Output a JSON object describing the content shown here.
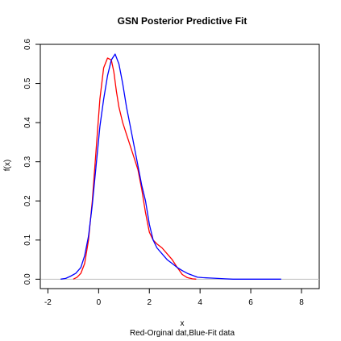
{
  "chart_data": {
    "type": "line",
    "title": "GSN Posterior Predictive Fit",
    "xlabel": "x",
    "xlabel_note": "Red-Orginal dat,Blue-Fit data",
    "ylabel": "f(x)",
    "xlim": [
      -2.3,
      8.7
    ],
    "ylim": [
      -0.024,
      0.6
    ],
    "x_ticks": [
      -2,
      0,
      2,
      4,
      6,
      8
    ],
    "x_tick_labels": [
      "-2",
      "0",
      "2",
      "4",
      "6",
      "8"
    ],
    "y_ticks": [
      0.0,
      0.1,
      0.2,
      0.3,
      0.4,
      0.5,
      0.6
    ],
    "y_tick_labels": [
      "0.0",
      "0.1",
      "0.2",
      "0.3",
      "0.4",
      "0.5",
      "0.6"
    ],
    "baseline_y": 0,
    "grid": false,
    "legend": "none",
    "colors": {
      "red": "#ff0000",
      "blue": "#0000ff",
      "baseline": "#bebebe"
    },
    "series": [
      {
        "color": "#ff0000",
        "x": [
          -1.0,
          -0.85,
          -0.7,
          -0.55,
          -0.4,
          -0.25,
          -0.1,
          0.05,
          0.2,
          0.35,
          0.5,
          0.6,
          0.7,
          0.8,
          0.95,
          1.1,
          1.25,
          1.4,
          1.55,
          1.7,
          1.85,
          2.0,
          2.15,
          2.3,
          2.5,
          2.7,
          2.9,
          3.1,
          3.3,
          3.5,
          3.7,
          3.85
        ],
        "y": [
          0.0,
          0.005,
          0.015,
          0.04,
          0.1,
          0.2,
          0.33,
          0.46,
          0.54,
          0.565,
          0.56,
          0.53,
          0.48,
          0.44,
          0.4,
          0.37,
          0.34,
          0.31,
          0.28,
          0.23,
          0.17,
          0.12,
          0.1,
          0.09,
          0.08,
          0.065,
          0.05,
          0.03,
          0.012,
          0.004,
          0.001,
          0.0
        ]
      },
      {
        "color": "#0000ff",
        "x": [
          -1.5,
          -1.3,
          -1.1,
          -0.9,
          -0.7,
          -0.55,
          -0.4,
          -0.25,
          -0.1,
          0.05,
          0.2,
          0.35,
          0.5,
          0.65,
          0.8,
          0.95,
          1.1,
          1.25,
          1.4,
          1.55,
          1.7,
          1.85,
          2.0,
          2.15,
          2.3,
          2.5,
          2.7,
          2.9,
          3.1,
          3.3,
          3.5,
          3.7,
          3.9,
          4.1,
          4.4,
          4.7,
          5.0,
          5.3,
          7.0,
          7.2
        ],
        "y": [
          0.0,
          0.002,
          0.008,
          0.015,
          0.03,
          0.06,
          0.11,
          0.19,
          0.29,
          0.39,
          0.46,
          0.52,
          0.56,
          0.575,
          0.55,
          0.5,
          0.44,
          0.39,
          0.34,
          0.29,
          0.24,
          0.2,
          0.14,
          0.1,
          0.08,
          0.065,
          0.05,
          0.04,
          0.03,
          0.022,
          0.015,
          0.01,
          0.005,
          0.004,
          0.003,
          0.002,
          0.001,
          0.0,
          0.0,
          0.0
        ]
      }
    ]
  }
}
